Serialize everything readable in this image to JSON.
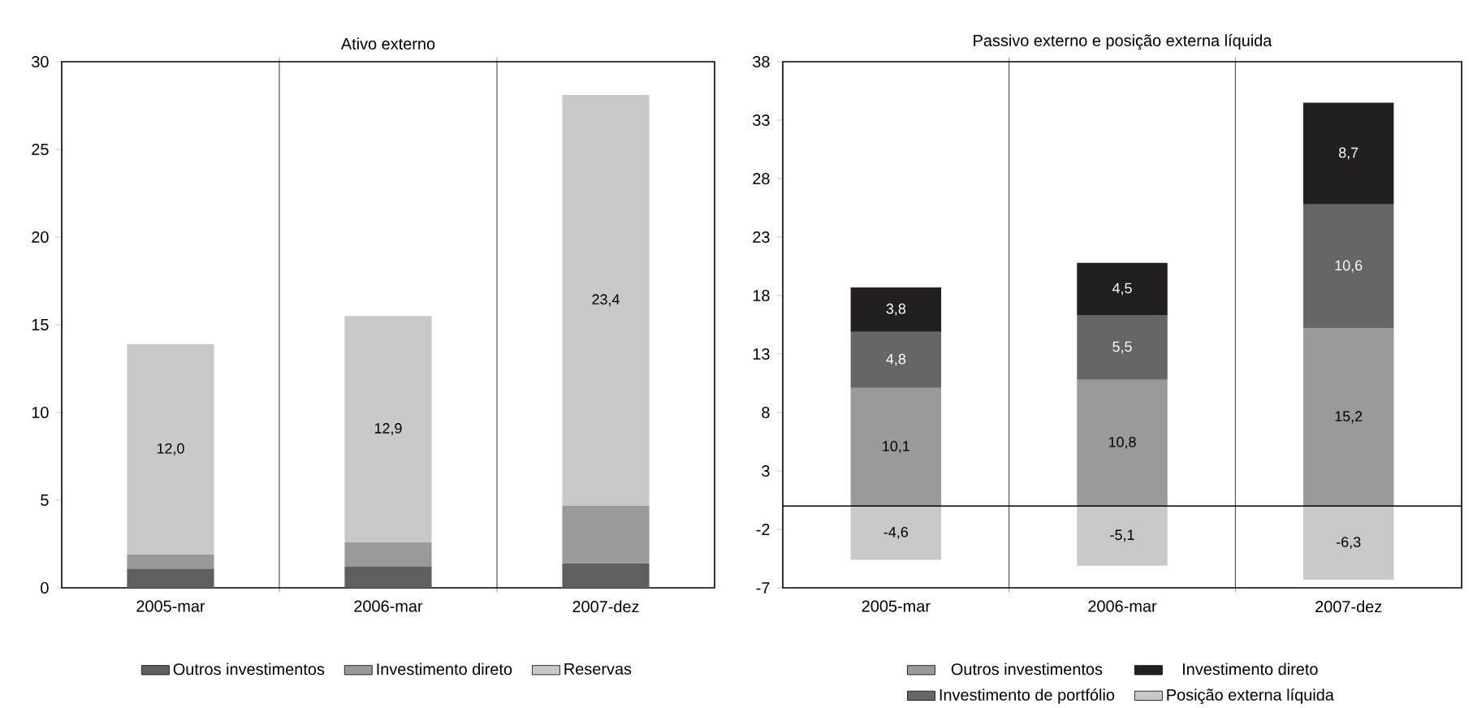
{
  "chart_data": [
    {
      "type": "bar",
      "title": "Ativo externo",
      "stacked": true,
      "categories": [
        "2005-mar",
        "2006-mar",
        "2007-dez"
      ],
      "ylim": [
        0,
        30
      ],
      "yticks": [
        0,
        5,
        10,
        15,
        20,
        25,
        30
      ],
      "grid": "x",
      "legend": "bottom",
      "series": [
        {
          "name": "Outros investimentos",
          "color": "#5f5f5f",
          "values": [
            1.1,
            1.2,
            1.4
          ]
        },
        {
          "name": "Investimento direto",
          "color": "#9a9a9a",
          "values": [
            0.8,
            1.4,
            3.3
          ]
        },
        {
          "name": "Reservas",
          "color": "#c8c8c8",
          "values": [
            12.0,
            12.9,
            23.4
          ],
          "value_labels": [
            "12,0",
            "12,9",
            "23,4"
          ]
        }
      ]
    },
    {
      "type": "bar",
      "title": "Passivo externo e posição externa líquida",
      "stacked": true,
      "categories": [
        "2005-mar",
        "2006-mar",
        "2007-dez"
      ],
      "ylim": [
        -7,
        38
      ],
      "yticks": [
        -7,
        -2,
        3,
        8,
        13,
        18,
        23,
        28,
        33,
        38
      ],
      "grid": "x",
      "legend": "bottom",
      "series": [
        {
          "name": "Outros investimentos",
          "color": "#9a9a9a",
          "values": [
            10.1,
            10.8,
            15.2
          ],
          "value_labels": [
            "10,1",
            "10,8",
            "15,2"
          ]
        },
        {
          "name": "Investimento de portfólio",
          "color": "#666666",
          "values": [
            4.8,
            5.5,
            10.6
          ],
          "value_labels": [
            "4,8",
            "5,5",
            "10,6"
          ]
        },
        {
          "name": "Investimento direto",
          "color": "#231f20",
          "values": [
            3.8,
            4.5,
            8.7
          ],
          "value_labels": [
            "3,8",
            "4,5",
            "8,7"
          ]
        },
        {
          "name": "Posição externa líquida",
          "color": "#c8c8c8",
          "values": [
            -4.6,
            -5.1,
            -6.3
          ],
          "value_labels": [
            "-4,6",
            "-5,1",
            "-6,3"
          ]
        }
      ]
    }
  ]
}
